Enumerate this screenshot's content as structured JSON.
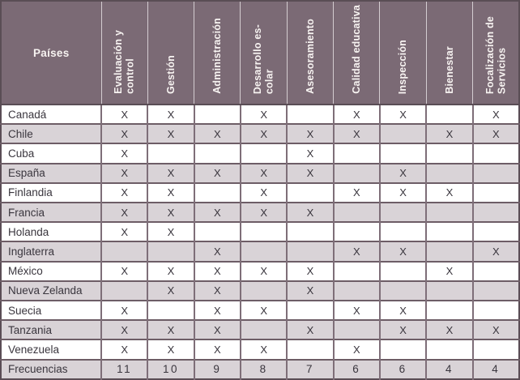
{
  "colors": {
    "header_bg": "#7b6a75",
    "header_text": "#f7f3f1",
    "row_alt_bg": "#d9d3d7",
    "row_bg": "#ffffff",
    "grid_dark": "#5a4d55",
    "grid_row": "#6d5d66",
    "grid_col": "#7e6e78",
    "header_separator": "#d4cdd1",
    "text": "#3a363e"
  },
  "table": {
    "header": {
      "countries_label": "Países",
      "columns": [
        "Evaluación y\ncontrol",
        "Gestión",
        "Administración",
        "Desarrollo es-\ncolar",
        "Asesoramiento",
        "Calidad educativa",
        "Inspección",
        "Bienestar",
        "Focalización de\nServicios"
      ]
    },
    "rows": [
      {
        "country": "Canadá",
        "marks": [
          "X",
          "X",
          "",
          "X",
          "",
          "X",
          "X",
          "",
          "X"
        ]
      },
      {
        "country": "Chile",
        "marks": [
          "X",
          "X",
          "X",
          "X",
          "X",
          "X",
          "",
          "X",
          "X"
        ]
      },
      {
        "country": "Cuba",
        "marks": [
          "X",
          "",
          "",
          "",
          "X",
          "",
          "",
          "",
          ""
        ]
      },
      {
        "country": "España",
        "marks": [
          "X",
          "X",
          "X",
          "X",
          "X",
          "",
          "X",
          "",
          ""
        ]
      },
      {
        "country": "Finlandia",
        "marks": [
          "X",
          "X",
          "",
          "X",
          "",
          "X",
          "X",
          "X",
          ""
        ]
      },
      {
        "country": "Francia",
        "marks": [
          "X",
          "X",
          "X",
          "X",
          "X",
          "",
          "",
          "",
          ""
        ]
      },
      {
        "country": "Holanda",
        "marks": [
          "X",
          "X",
          "",
          "",
          "",
          "",
          "",
          "",
          ""
        ]
      },
      {
        "country": "Inglaterra",
        "marks": [
          "",
          "",
          "X",
          "",
          "",
          "X",
          "X",
          "",
          "X"
        ]
      },
      {
        "country": "México",
        "marks": [
          "X",
          "X",
          "X",
          "X",
          "X",
          "",
          "",
          "X",
          ""
        ]
      },
      {
        "country": "Nueva Zelanda",
        "marks": [
          "",
          "X",
          "X",
          "",
          "X",
          "",
          "",
          "",
          ""
        ]
      },
      {
        "country": "Suecia",
        "marks": [
          "X",
          "",
          "X",
          "X",
          "",
          "X",
          "X",
          "",
          ""
        ]
      },
      {
        "country": "Tanzania",
        "marks": [
          "X",
          "X",
          "X",
          "",
          "X",
          "",
          "X",
          "X",
          "X"
        ]
      },
      {
        "country": "Venezuela",
        "marks": [
          "X",
          "X",
          "X",
          "X",
          "",
          "X",
          "",
          "",
          ""
        ]
      }
    ],
    "footer": {
      "label": "Frecuencias",
      "values": [
        "11",
        "10",
        "9",
        "8",
        "7",
        "6",
        "6",
        "4",
        "4"
      ]
    }
  }
}
